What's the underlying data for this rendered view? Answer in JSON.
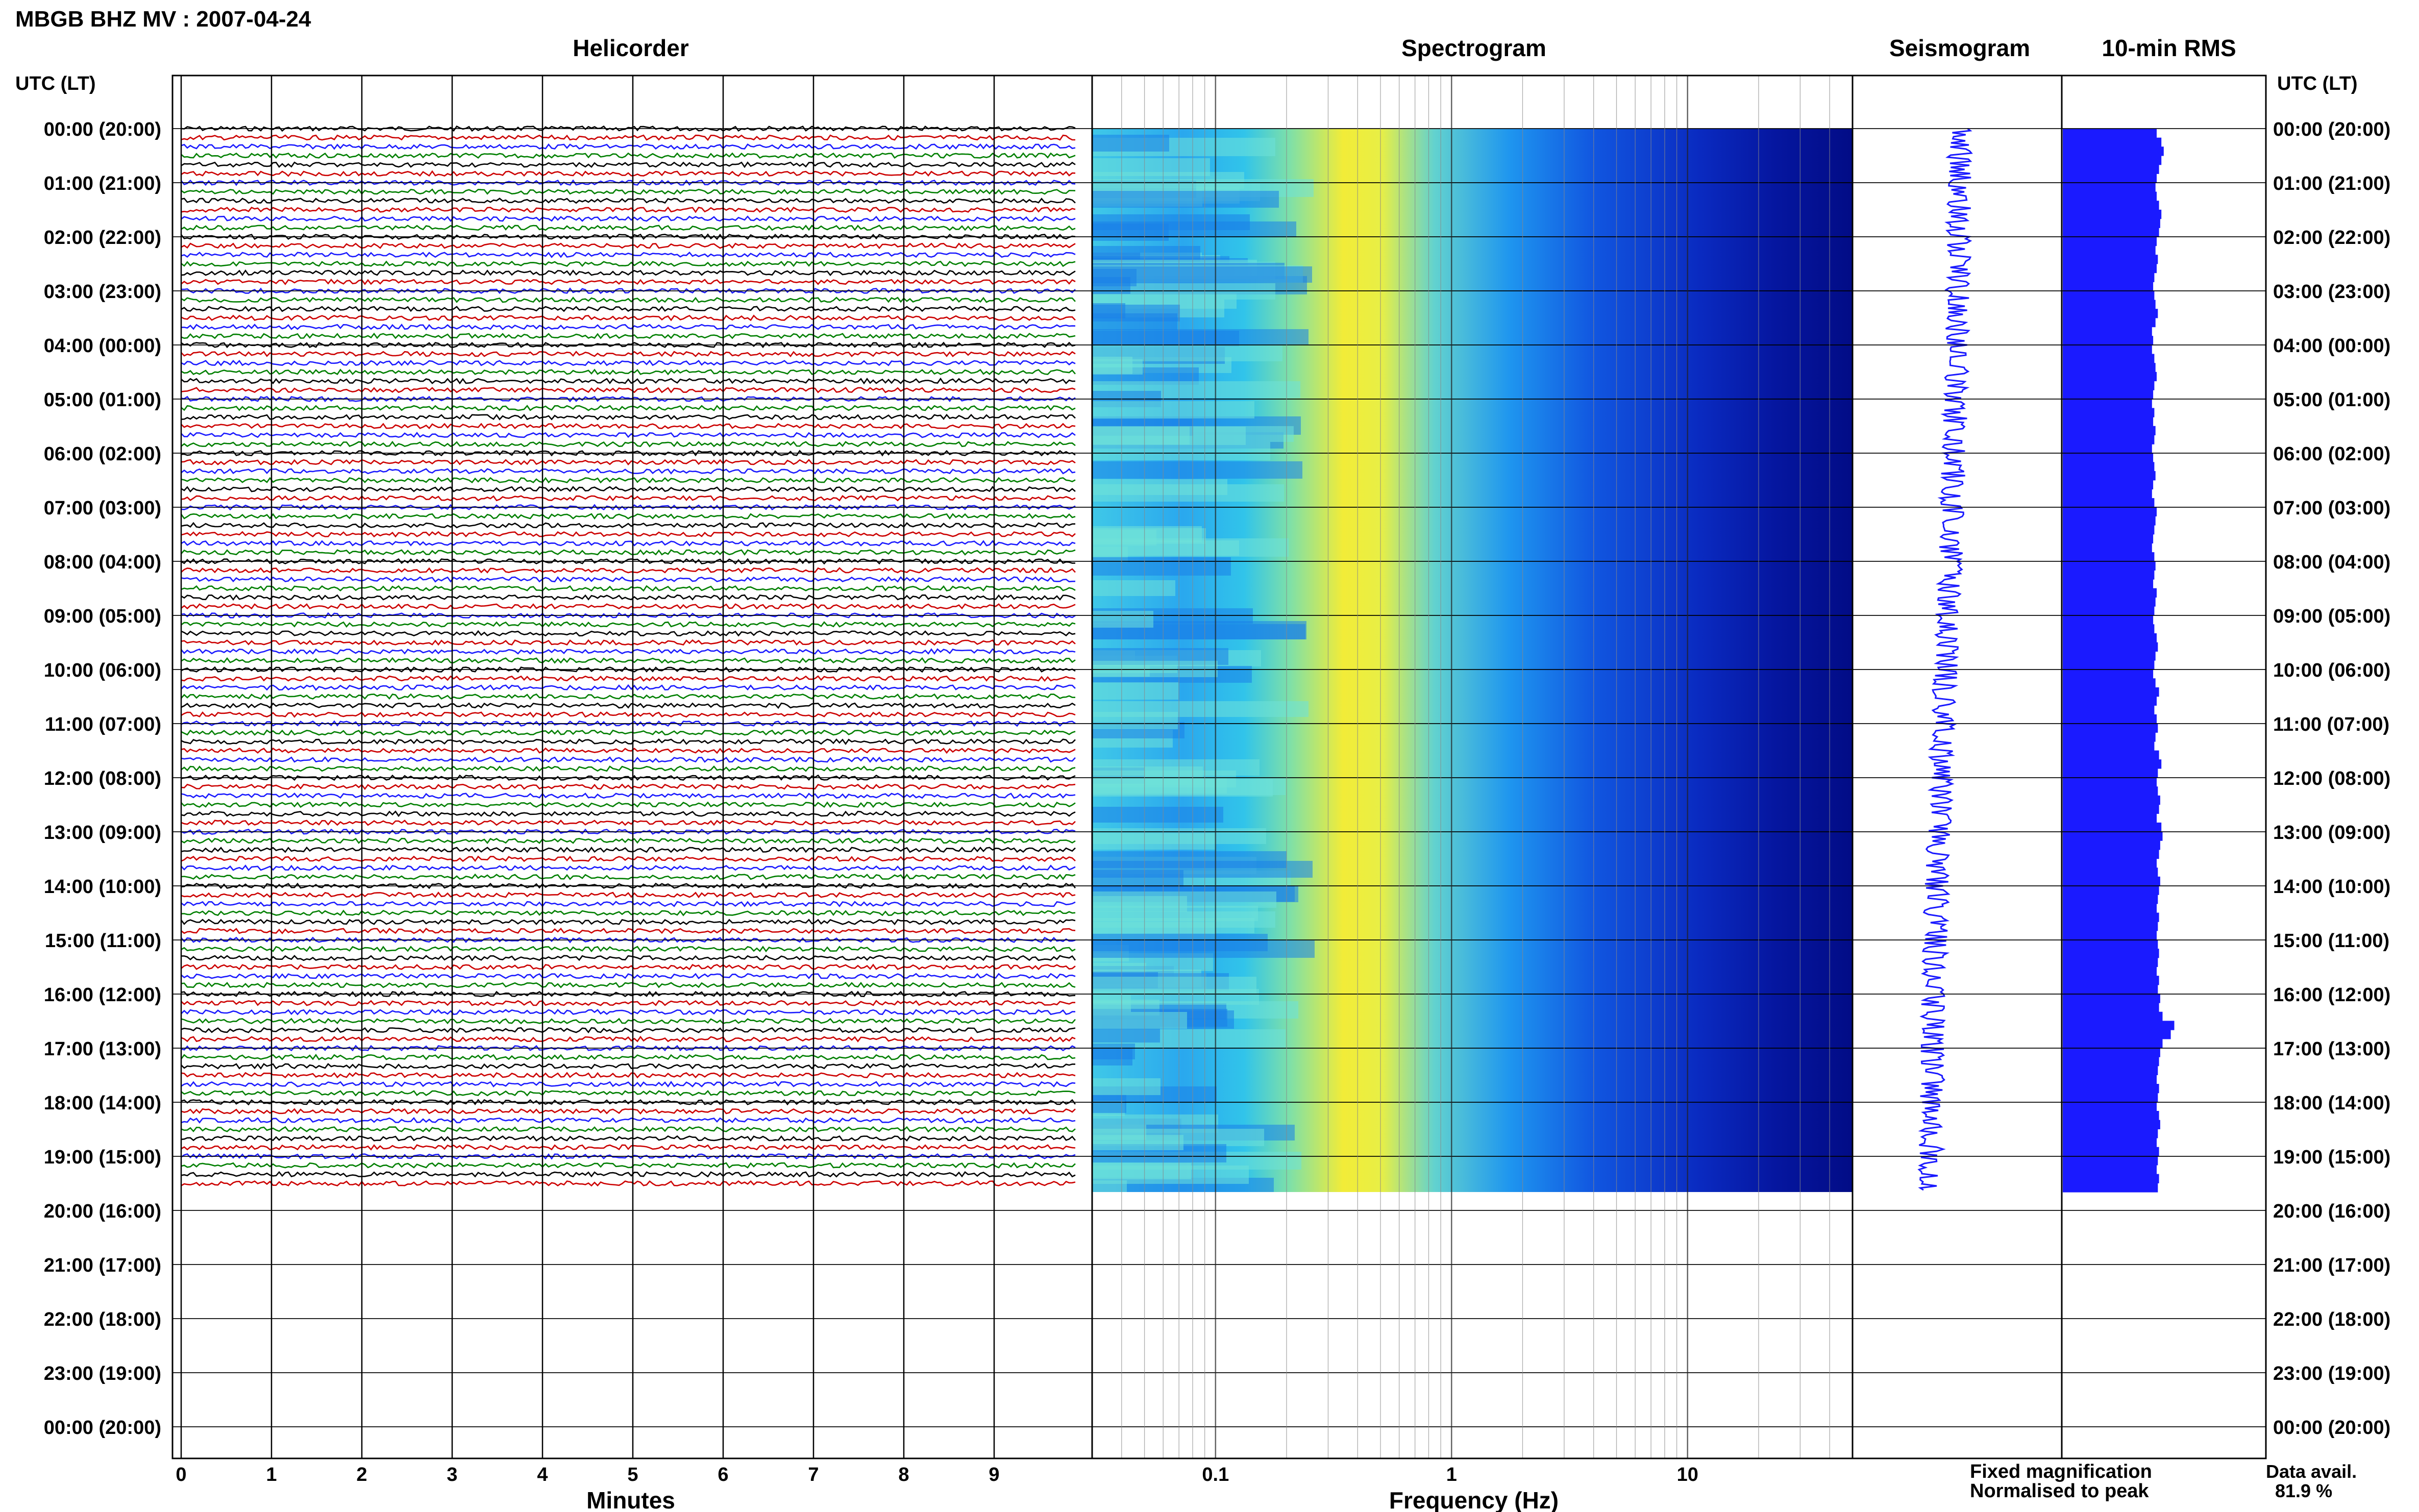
{
  "title": "MBGB BHZ MV : 2007-04-24",
  "panels": {
    "helicorder": "Helicorder",
    "spectrogram": "Spectrogram",
    "seismogram": "Seismogram",
    "rms": "10-min RMS"
  },
  "axis_header_left": "UTC (LT)",
  "axis_header_right": "UTC (LT)",
  "time_labels": [
    "00:00 (20:00)",
    "01:00 (21:00)",
    "02:00 (22:00)",
    "03:00 (23:00)",
    "04:00 (00:00)",
    "05:00 (01:00)",
    "06:00 (02:00)",
    "07:00 (03:00)",
    "08:00 (04:00)",
    "09:00 (05:00)",
    "10:00 (06:00)",
    "11:00 (07:00)",
    "12:00 (08:00)",
    "13:00 (09:00)",
    "14:00 (10:00)",
    "15:00 (11:00)",
    "16:00 (12:00)",
    "17:00 (13:00)",
    "18:00 (14:00)",
    "19:00 (15:00)",
    "20:00 (16:00)",
    "21:00 (17:00)",
    "22:00 (18:00)",
    "23:00 (19:00)",
    "00:00 (20:00)"
  ],
  "minutes_ticks": [
    "0",
    "1",
    "2",
    "3",
    "4",
    "5",
    "6",
    "7",
    "8",
    "9"
  ],
  "minutes_label": "Minutes",
  "freq_ticks": [
    "0.1",
    "1",
    "10"
  ],
  "freq_label": "Frequency (Hz)",
  "legend": {
    "fixed": "Fixed magnification",
    "normalised": "Normalised to peak",
    "fixed_color": "#1a1aff",
    "normalised_color": "#ff1a1a"
  },
  "data_avail": {
    "label": "Data avail.",
    "value": "81.9 %"
  },
  "chart_data": {
    "type": "heatmap",
    "station": "MBGB BHZ MV",
    "date": "2007-04-24",
    "hours_shown": 24,
    "data_hours": 19.66,
    "helicorder_trace_colors": [
      "#000000",
      "#cc0000",
      "#1a1aff",
      "#007f00"
    ],
    "spectrogram_colors": [
      "#00007f",
      "#1a1aff",
      "#00bfff",
      "#5fe0c0",
      "#ffff33"
    ],
    "freq_range_hz": [
      0.03,
      50
    ],
    "minutes_range": [
      0,
      10
    ],
    "rms_bar_color": "#1a1aff",
    "rms_relative_levels": [
      0.8,
      0.84,
      0.86,
      0.84,
      0.82,
      0.8,
      0.79,
      0.8,
      0.82,
      0.84,
      0.83,
      0.82,
      0.8,
      0.79,
      0.81,
      0.8,
      0.78,
      0.77,
      0.78,
      0.79,
      0.81,
      0.79,
      0.76,
      0.77,
      0.76,
      0.78,
      0.79,
      0.8,
      0.78,
      0.77,
      0.76,
      0.78,
      0.77,
      0.79,
      0.78,
      0.76,
      0.77,
      0.78,
      0.79,
      0.77,
      0.76,
      0.78,
      0.8,
      0.79,
      0.78,
      0.77,
      0.76,
      0.78,
      0.79,
      0.78,
      0.77,
      0.8,
      0.79,
      0.78,
      0.77,
      0.78,
      0.8,
      0.81,
      0.79,
      0.78,
      0.77,
      0.79,
      0.82,
      0.8,
      0.78,
      0.8,
      0.81,
      0.79,
      0.78,
      0.82,
      0.84,
      0.81,
      0.8,
      0.81,
      0.83,
      0.82,
      0.8,
      0.84,
      0.85,
      0.83,
      0.82,
      0.8,
      0.81,
      0.83,
      0.82,
      0.81,
      0.8,
      0.82,
      0.81,
      0.8,
      0.81,
      0.82,
      0.81,
      0.8,
      0.82,
      0.81,
      0.83,
      0.82,
      0.85,
      0.95,
      0.92,
      0.85,
      0.83,
      0.82,
      0.81,
      0.8,
      0.82,
      0.81,
      0.8,
      0.82,
      0.83,
      0.81,
      0.8,
      0.82,
      0.81,
      0.8,
      0.82,
      0.81
    ]
  }
}
